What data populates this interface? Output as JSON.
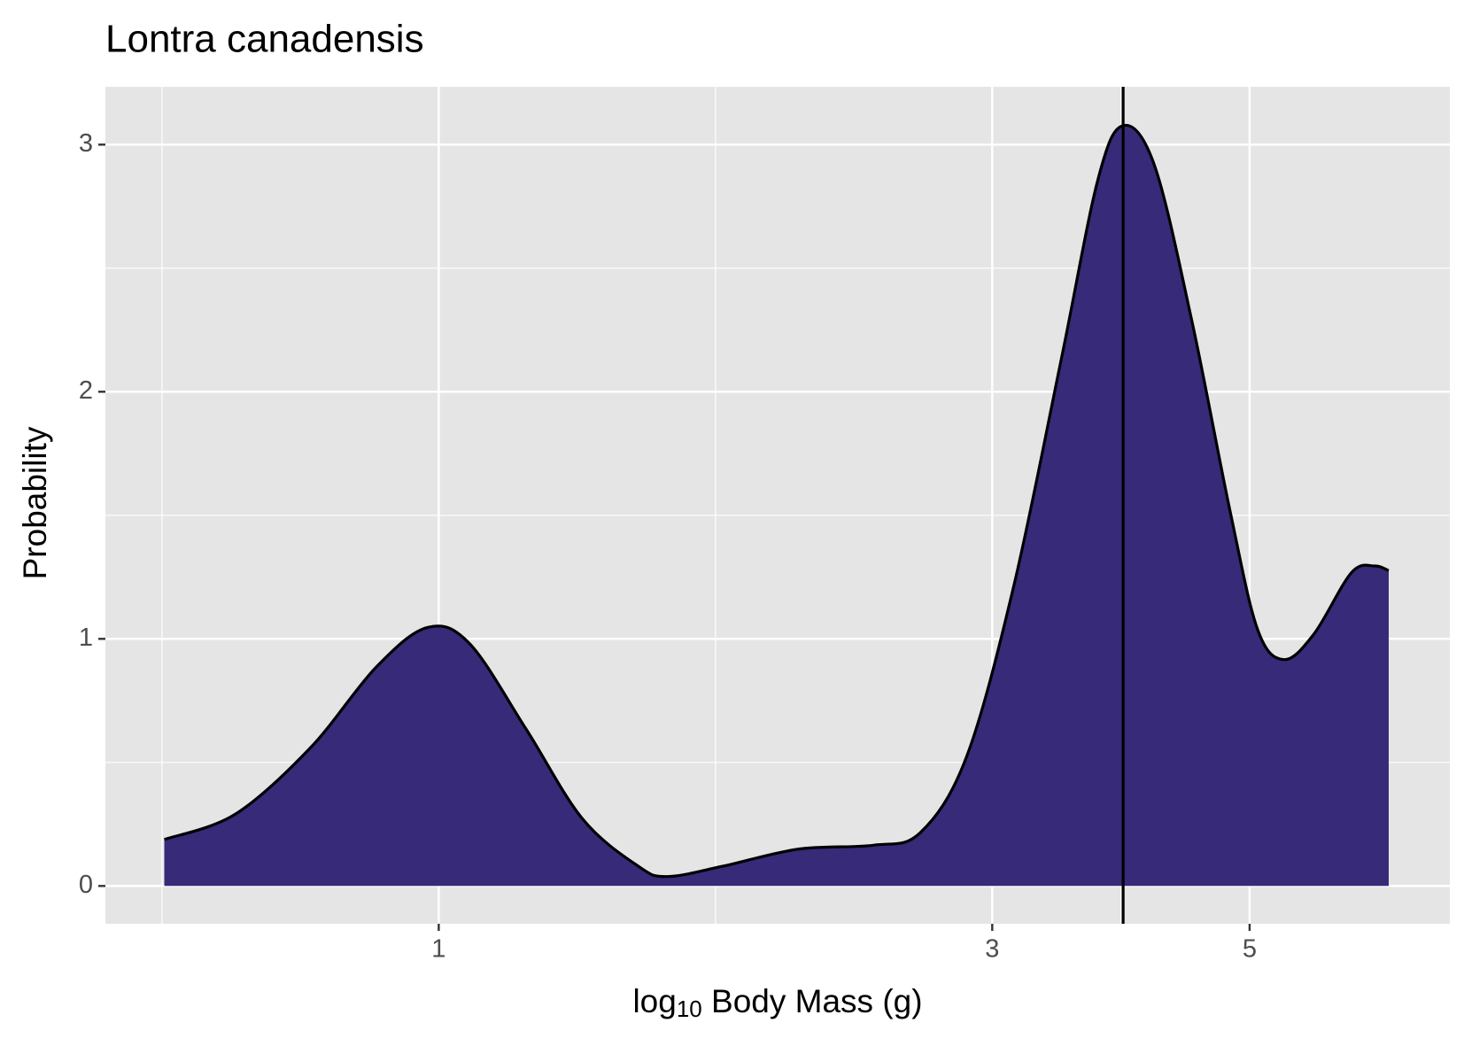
{
  "chart_data": {
    "type": "area",
    "title": "Lontra canadensis",
    "x_label": {
      "base": "log",
      "subscript": "10",
      "rest": " Body Mass (g)"
    },
    "y_label": "Probability",
    "x": [
      0.58,
      0.668,
      0.775,
      0.883,
      0.978,
      1.063,
      1.189,
      1.33,
      1.486,
      1.573,
      1.758,
      2.04,
      2.37,
      2.6,
      2.85,
      3.13,
      3.44,
      3.7,
      3.89,
      4.14,
      4.46,
      4.81,
      5.08,
      5.35,
      5.68,
      6.12,
      6.41,
      6.59
    ],
    "values": [
      0.188,
      0.291,
      0.559,
      0.885,
      1.046,
      0.981,
      0.636,
      0.272,
      0.08,
      0.038,
      0.08,
      0.149,
      0.165,
      0.215,
      0.521,
      1.211,
      2.13,
      2.858,
      3.077,
      2.916,
      2.284,
      1.517,
      1.038,
      0.916,
      1.019,
      1.268,
      1.295,
      1.276
    ],
    "color": "#372a79",
    "vline": 3.89,
    "xlim": [
      0.516,
      7.44
    ],
    "xticks": [
      1,
      3,
      5
    ],
    "xscale": "log",
    "ylim": [
      -0.153,
      3.234
    ],
    "yticks": [
      0,
      1,
      2,
      3
    ],
    "grid": true
  }
}
